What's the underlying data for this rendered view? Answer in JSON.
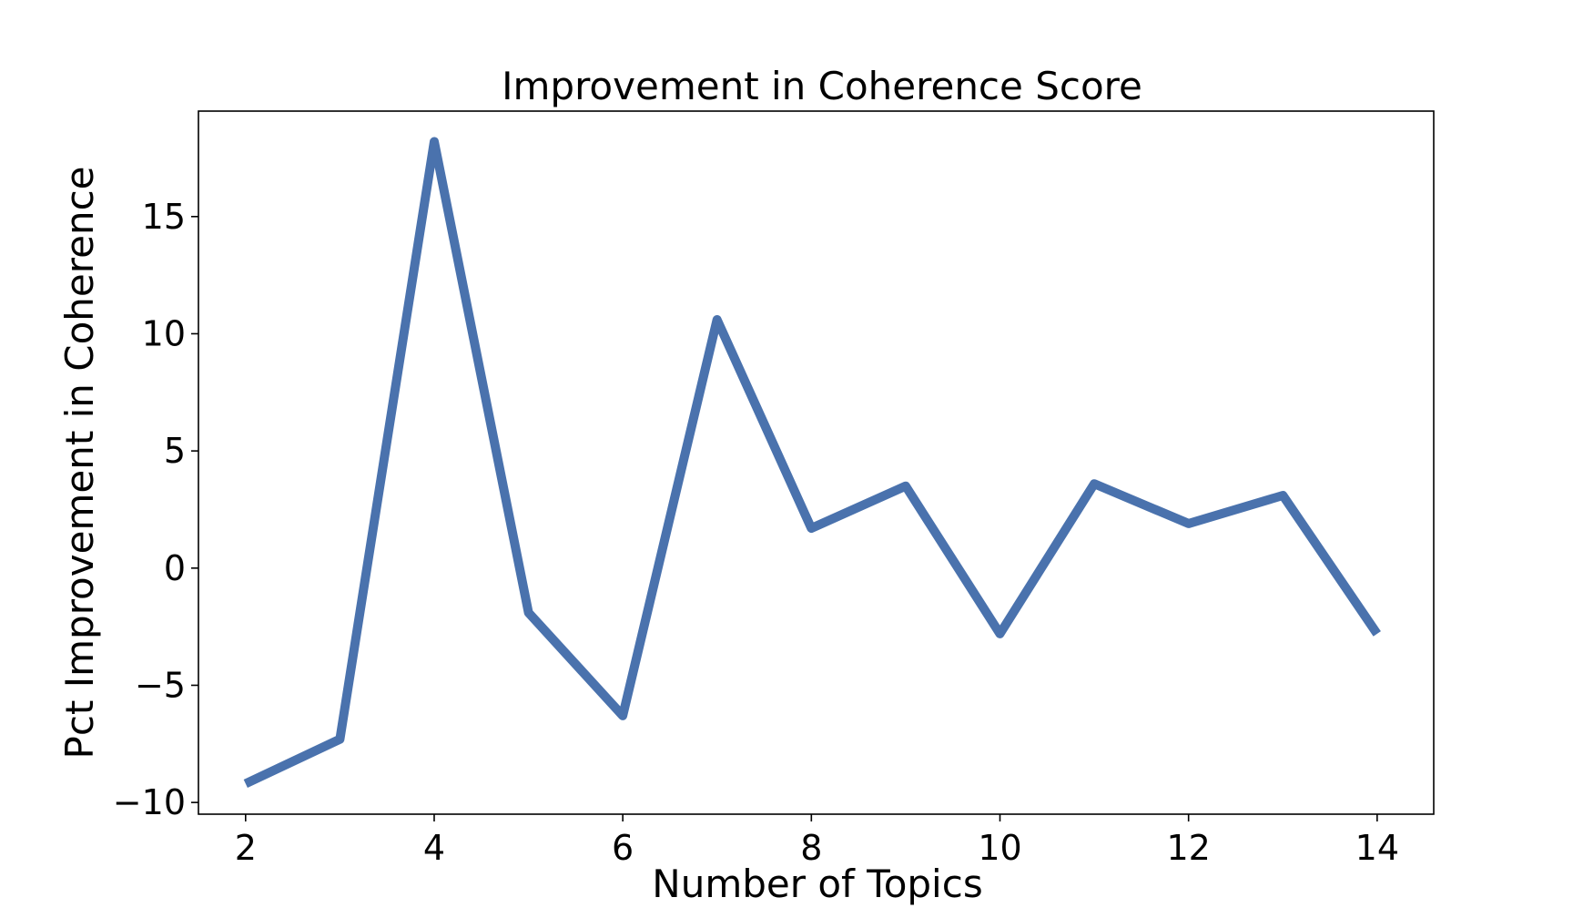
{
  "chart_data": {
    "type": "line",
    "title": "Improvement in Coherence Score",
    "xlabel": "Number of Topics",
    "ylabel": "Pct Improvement in Coherence",
    "xlim": [
      1.5,
      14.6
    ],
    "ylim": [
      -10.5,
      19.5
    ],
    "x_ticks": [
      2,
      4,
      6,
      8,
      10,
      12,
      14
    ],
    "x_tick_labels": [
      "2",
      "4",
      "6",
      "8",
      "10",
      "12",
      "14"
    ],
    "y_ticks": [
      -10,
      -5,
      0,
      5,
      10,
      15
    ],
    "y_tick_labels": [
      "−10",
      "−5",
      "0",
      "5",
      "10",
      "15"
    ],
    "grid": false,
    "series": [
      {
        "color": "#4a72ad",
        "x": [
          2,
          3,
          4,
          5,
          6,
          7,
          8,
          9,
          10,
          11,
          12,
          13,
          14
        ],
        "y": [
          -9.2,
          -7.3,
          18.2,
          -1.9,
          -6.3,
          10.6,
          1.7,
          3.5,
          -2.8,
          3.6,
          1.9,
          3.1,
          -2.8
        ]
      }
    ]
  }
}
